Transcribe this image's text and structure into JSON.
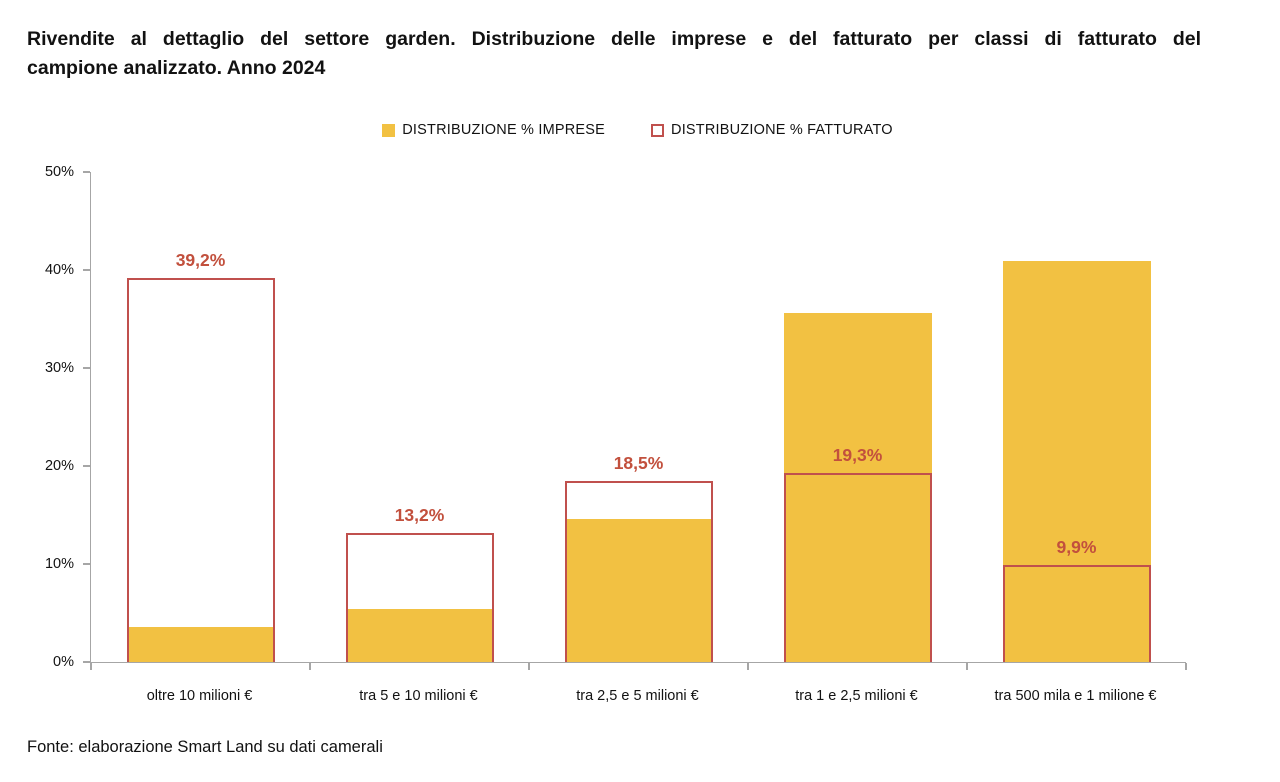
{
  "title": {
    "line1": "Rivendite al dettaglio del settore garden. Distribuzione delle imprese e del fatturato per classi di fatturato del",
    "line2": "campione analizzato. Anno 2024"
  },
  "legend": {
    "items": [
      {
        "label": "DISTRIBUZIONE % IMPRESE",
        "swatch": "filled"
      },
      {
        "label": "DISTRIBUZIONE % FATTURATO",
        "swatch": "outlined"
      }
    ]
  },
  "colors": {
    "imprese_fill": "#F2C142",
    "fatturato_border": "#C0504D",
    "value_label": "#C2503D",
    "axis_gray": "#A6A6A6"
  },
  "chart_data": {
    "type": "bar",
    "title": "Rivendite al dettaglio del settore garden. Distribuzione delle imprese e del fatturato per classi di fatturato del campione analizzato. Anno 2024",
    "categories": [
      "oltre 10 milioni €",
      "tra 5 e 10 milioni €",
      "tra 2,5 e 5 milioni €",
      "tra 1 e 2,5 milioni €",
      "tra 500 mila e 1 milione €"
    ],
    "series": [
      {
        "name": "DISTRIBUZIONE % IMPRESE",
        "style": "filled",
        "values": [
          3.6,
          5.4,
          14.6,
          35.6,
          40.9
        ],
        "data_labels": []
      },
      {
        "name": "DISTRIBUZIONE % FATTURATO",
        "style": "outlined",
        "values": [
          39.2,
          13.2,
          18.5,
          19.3,
          9.9
        ],
        "data_labels": [
          "39,2%",
          "13,2%",
          "18,5%",
          "19,3%",
          "9,9%"
        ]
      }
    ],
    "xlabel": "",
    "ylabel": "",
    "ylim": [
      0,
      50
    ],
    "yticks": [
      "0%",
      "10%",
      "20%",
      "30%",
      "40%",
      "50%"
    ],
    "grid": false,
    "legend_position": "top",
    "bars_overlap": true
  },
  "footer": {
    "source": "Fonte: elaborazione Smart Land su dati camerali"
  }
}
